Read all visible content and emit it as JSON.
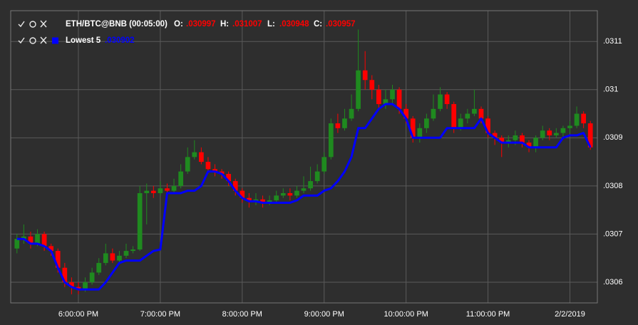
{
  "chart_data": {
    "type": "candlestick",
    "categories": [
      "5:15:00 PM",
      "5:20:00 PM",
      "5:25:00 PM",
      "5:30:00 PM",
      "5:35:00 PM",
      "5:40:00 PM",
      "5:45:00 PM",
      "5:50:00 PM",
      "5:55:00 PM",
      "6:00:00 PM",
      "6:05:00 PM",
      "6:10:00 PM",
      "6:15:00 PM",
      "6:20:00 PM",
      "6:25:00 PM",
      "6:30:00 PM",
      "6:35:00 PM",
      "6:40:00 PM",
      "6:45:00 PM",
      "6:50:00 PM",
      "6:55:00 PM",
      "7:00:00 PM",
      "7:05:00 PM",
      "7:10:00 PM",
      "7:15:00 PM",
      "7:20:00 PM",
      "7:25:00 PM",
      "7:30:00 PM",
      "7:35:00 PM",
      "7:40:00 PM",
      "7:45:00 PM",
      "7:50:00 PM",
      "7:55:00 PM",
      "8:00:00 PM",
      "8:05:00 PM",
      "8:10:00 PM",
      "8:15:00 PM",
      "8:20:00 PM",
      "8:25:00 PM",
      "8:30:00 PM",
      "8:35:00 PM",
      "8:40:00 PM",
      "8:45:00 PM",
      "8:50:00 PM",
      "8:55:00 PM",
      "9:00:00 PM",
      "9:05:00 PM",
      "9:10:00 PM",
      "9:15:00 PM",
      "9:20:00 PM",
      "9:25:00 PM",
      "9:30:00 PM",
      "9:35:00 PM",
      "9:40:00 PM",
      "9:45:00 PM",
      "9:50:00 PM",
      "9:55:00 PM",
      "10:00:00 PM",
      "10:05:00 PM",
      "10:10:00 PM",
      "10:15:00 PM",
      "10:20:00 PM",
      "10:25:00 PM",
      "10:30:00 PM",
      "10:35:00 PM",
      "10:40:00 PM",
      "10:45:00 PM",
      "10:50:00 PM",
      "10:55:00 PM",
      "11:00:00 PM",
      "11:05:00 PM",
      "11:10:00 PM",
      "11:15:00 PM",
      "11:20:00 PM",
      "11:25:00 PM",
      "11:30:00 PM",
      "11:35:00 PM",
      "11:40:00 PM",
      "11:45:00 PM",
      "11:50:00 PM",
      "11:55:00 PM",
      "12:00:00 AM",
      "12:05:00 AM",
      "12:10:00 AM",
      "12:15:00 AM"
    ],
    "open": [
      0.03067,
      0.03069,
      0.030695,
      0.03068,
      0.0307,
      0.030675,
      0.030665,
      0.03063,
      0.0306,
      0.03059,
      0.030585,
      0.0306,
      0.03062,
      0.03064,
      0.03066,
      0.030645,
      0.030655,
      0.030665,
      0.030668,
      0.030785,
      0.03079,
      0.030785,
      0.030795,
      0.03079,
      0.0308,
      0.03083,
      0.03086,
      0.03087,
      0.03085,
      0.030835,
      0.03083,
      0.030825,
      0.03081,
      0.03079,
      0.030775,
      0.030768,
      0.030772,
      0.030765,
      0.03077,
      0.03078,
      0.030785,
      0.03078,
      0.03079,
      0.030795,
      0.03081,
      0.03083,
      0.03086,
      0.03093,
      0.03092,
      0.03094,
      0.03096,
      0.03104,
      0.03102,
      0.031,
      0.03097,
      0.03098,
      0.031,
      0.03096,
      0.03094,
      0.0309,
      0.03092,
      0.03094,
      0.03096,
      0.03099,
      0.03097,
      0.03092,
      0.03094,
      0.03095,
      0.03096,
      0.03094,
      0.03091,
      0.0309,
      0.03089,
      0.030895,
      0.030905,
      0.03089,
      0.03088,
      0.0309,
      0.030915,
      0.030905,
      0.03091,
      0.03092,
      0.030925,
      0.03095,
      0.03093
    ],
    "high": [
      0.0307,
      0.03072,
      0.030705,
      0.03071,
      0.030705,
      0.03068,
      0.03067,
      0.03064,
      0.03061,
      0.0306,
      0.03061,
      0.03063,
      0.03065,
      0.03068,
      0.03067,
      0.030665,
      0.03068,
      0.030675,
      0.0308,
      0.030805,
      0.0308,
      0.03081,
      0.030805,
      0.030815,
      0.030845,
      0.03088,
      0.030895,
      0.03088,
      0.03086,
      0.030845,
      0.030835,
      0.03083,
      0.030815,
      0.030795,
      0.030785,
      0.030785,
      0.03078,
      0.03078,
      0.03079,
      0.030795,
      0.030795,
      0.0308,
      0.03082,
      0.03084,
      0.030845,
      0.03087,
      0.03094,
      0.03095,
      0.03096,
      0.03099,
      0.031125,
      0.03108,
      0.03103,
      0.03101,
      0.031,
      0.03101,
      0.031005,
      0.03097,
      0.030945,
      0.03093,
      0.03095,
      0.03099,
      0.031005,
      0.030995,
      0.030975,
      0.03095,
      0.03096,
      0.031,
      0.030965,
      0.030945,
      0.030915,
      0.030905,
      0.030905,
      0.030915,
      0.03091,
      0.030895,
      0.030905,
      0.030925,
      0.03092,
      0.03092,
      0.030925,
      0.030935,
      0.030965,
      0.030955,
      0.030935
    ],
    "low": [
      0.03066,
      0.03068,
      0.03067,
      0.030675,
      0.030665,
      0.030655,
      0.03062,
      0.03059,
      0.030575,
      0.030575,
      0.03058,
      0.030595,
      0.030615,
      0.030635,
      0.03064,
      0.03064,
      0.03065,
      0.03066,
      0.030665,
      0.03072,
      0.030775,
      0.03078,
      0.03078,
      0.030785,
      0.030795,
      0.030825,
      0.030855,
      0.030845,
      0.030825,
      0.03082,
      0.030815,
      0.0308,
      0.03078,
      0.030765,
      0.030755,
      0.03076,
      0.030755,
      0.03076,
      0.030765,
      0.030775,
      0.03077,
      0.030775,
      0.030785,
      0.03079,
      0.030805,
      0.030825,
      0.030855,
      0.03091,
      0.030915,
      0.030935,
      0.030955,
      0.031,
      0.03098,
      0.03096,
      0.03096,
      0.03097,
      0.03095,
      0.03093,
      0.03089,
      0.03089,
      0.03091,
      0.030935,
      0.030955,
      0.03096,
      0.03091,
      0.030915,
      0.03093,
      0.030945,
      0.03093,
      0.0309,
      0.030885,
      0.03086,
      0.03088,
      0.030885,
      0.03088,
      0.03087,
      0.03087,
      0.030895,
      0.030895,
      0.0309,
      0.0309,
      0.03091,
      0.03092,
      0.03092,
      0.030875
    ],
    "close": [
      0.03069,
      0.030695,
      0.03068,
      0.0307,
      0.030675,
      0.030665,
      0.03063,
      0.0306,
      0.03059,
      0.030585,
      0.0306,
      0.03062,
      0.03064,
      0.03066,
      0.030645,
      0.030655,
      0.030665,
      0.030668,
      0.030785,
      0.03079,
      0.030785,
      0.030795,
      0.03079,
      0.0308,
      0.03083,
      0.03086,
      0.03087,
      0.03085,
      0.030835,
      0.03083,
      0.030825,
      0.03081,
      0.03079,
      0.030775,
      0.030768,
      0.030772,
      0.030765,
      0.03077,
      0.03078,
      0.030785,
      0.03078,
      0.03079,
      0.030795,
      0.03081,
      0.03083,
      0.03086,
      0.03093,
      0.03092,
      0.03094,
      0.03096,
      0.03104,
      0.03102,
      0.031,
      0.03097,
      0.03098,
      0.031,
      0.03096,
      0.03094,
      0.0309,
      0.03092,
      0.03094,
      0.03096,
      0.03099,
      0.03097,
      0.03092,
      0.03094,
      0.03095,
      0.03096,
      0.03094,
      0.03091,
      0.0309,
      0.03089,
      0.030895,
      0.030905,
      0.03089,
      0.03088,
      0.0309,
      0.030915,
      0.030905,
      0.03091,
      0.03092,
      0.030925,
      0.03095,
      0.03093,
      0.03088
    ],
    "up_color": "#1f8a1f",
    "down_color": "#ff0000",
    "series": [
      {
        "name": "Lowest 5",
        "color": "#0000ff",
        "value": 0.030902,
        "value_label": ".030902",
        "values": [
          0.03069,
          0.03069,
          0.03068,
          0.03068,
          0.030675,
          0.030665,
          0.03063,
          0.0306,
          0.03059,
          0.030585,
          0.030585,
          0.030585,
          0.030585,
          0.0306,
          0.03062,
          0.03064,
          0.030645,
          0.030645,
          0.030645,
          0.030655,
          0.030665,
          0.030668,
          0.030785,
          0.030785,
          0.030785,
          0.03079,
          0.03079,
          0.0308,
          0.03083,
          0.03083,
          0.030825,
          0.03081,
          0.03079,
          0.030775,
          0.030768,
          0.030768,
          0.030765,
          0.030765,
          0.030765,
          0.030765,
          0.030765,
          0.03077,
          0.03078,
          0.03078,
          0.03078,
          0.03079,
          0.030795,
          0.03081,
          0.03083,
          0.03086,
          0.03092,
          0.03092,
          0.03094,
          0.03096,
          0.03097,
          0.03097,
          0.03096,
          0.03094,
          0.0309,
          0.0309,
          0.0309,
          0.0309,
          0.0309,
          0.03092,
          0.03092,
          0.03092,
          0.03092,
          0.03092,
          0.03094,
          0.03091,
          0.0309,
          0.03089,
          0.03089,
          0.03089,
          0.03089,
          0.03088,
          0.03088,
          0.03088,
          0.03088,
          0.03088,
          0.0309,
          0.030905,
          0.030905,
          0.03091,
          0.03088
        ]
      }
    ],
    "ohlc_legend": {
      "title": "ETH/BTC@BNB (00:05:00)",
      "items": [
        {
          "name": "O:",
          "value": 0.030997,
          "label": ".030997"
        },
        {
          "name": "H:",
          "value": 0.031007,
          "label": ".031007"
        },
        {
          "name": "L:",
          "value": 0.030948,
          "label": ".030948"
        },
        {
          "name": "C:",
          "value": 0.030957,
          "label": ".030957"
        }
      ]
    },
    "ylim": [
      0.030557,
      0.031164
    ],
    "yticks": [
      {
        "value": 0.0306,
        "label": ".0306"
      },
      {
        "value": 0.0307,
        "label": ".0307"
      },
      {
        "value": 0.0308,
        "label": ".0308"
      },
      {
        "value": 0.0309,
        "label": ".0309"
      },
      {
        "value": 0.031,
        "label": ".031"
      },
      {
        "value": 0.0311,
        "label": ".0311"
      }
    ],
    "xticks": [
      "6:00:00 PM",
      "7:00:00 PM",
      "8:00:00 PM",
      "9:00:00 PM",
      "10:00:00 PM",
      "11:00:00 PM",
      {
        "value": "12:00:00 AM",
        "label": "2/2/2019"
      }
    ],
    "grid": true
  }
}
